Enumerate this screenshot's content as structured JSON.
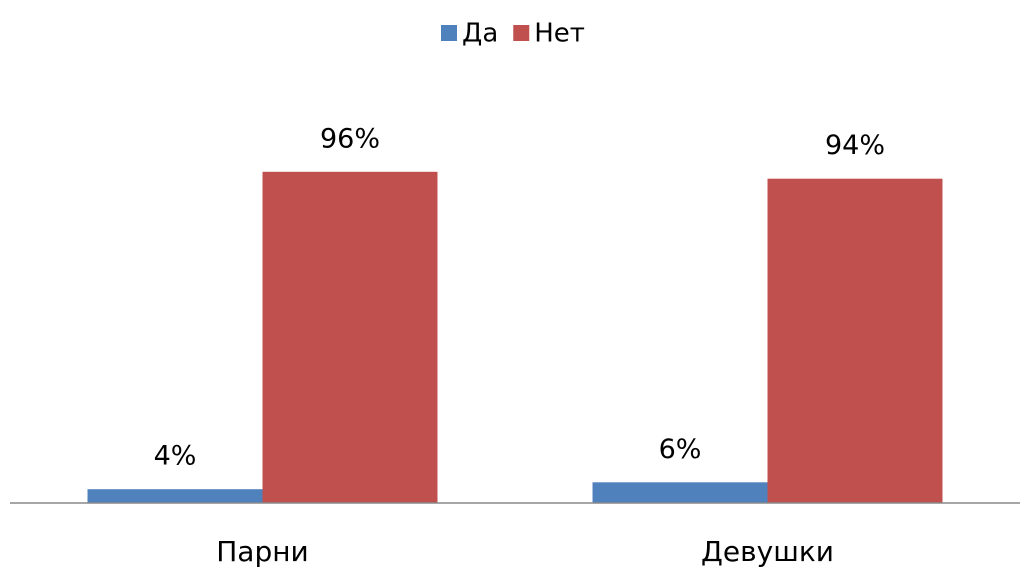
{
  "chart_data": {
    "type": "bar",
    "categories": [
      "Парни",
      "Девушки"
    ],
    "series": [
      {
        "name": "Да",
        "color": "#4f81bd",
        "values": [
          4,
          6
        ],
        "value_labels": [
          "4%",
          "6%"
        ]
      },
      {
        "name": "Нет",
        "color": "#c0504d",
        "values": [
          96,
          94
        ],
        "value_labels": [
          "96%",
          "94%"
        ]
      }
    ],
    "ylim": [
      0,
      100
    ],
    "legend": "top"
  }
}
